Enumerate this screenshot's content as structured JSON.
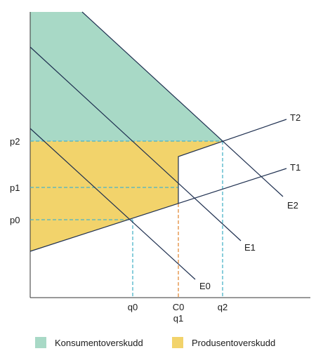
{
  "colors": {
    "consumer_surplus": "#a8d9c6",
    "producer_surplus": "#f2d36b",
    "curve": "#1f3050",
    "dash_blue": "#4ab3c8",
    "dash_orange": "#e38b3a"
  },
  "curves": {
    "t1": "T1",
    "t2": "T2",
    "e0": "E0",
    "e1": "E1",
    "e2": "E2"
  },
  "y_axis_labels": {
    "p0": "p0",
    "p1": "p1",
    "p2": "p2"
  },
  "x_axis_labels": {
    "q0": "q0",
    "c0": "C0",
    "q1": "q1",
    "q2": "q2"
  },
  "legend": {
    "consumer": "Konsumentoverskudd",
    "producer": "Produsentoverskudd"
  }
}
